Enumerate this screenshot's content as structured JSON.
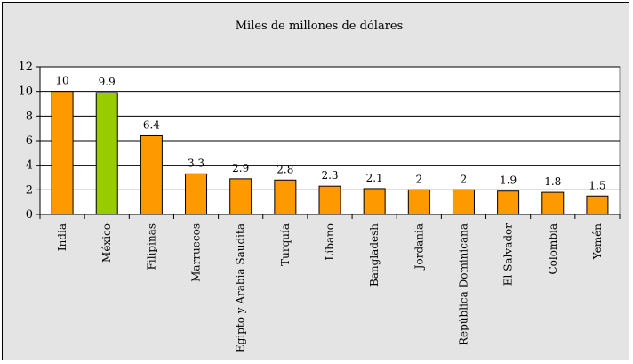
{
  "chart_data": {
    "type": "bar",
    "title": "Miles de millones de dólares",
    "xlabel": "",
    "ylabel": "",
    "ylim": [
      0,
      12
    ],
    "yticks": [
      0,
      2,
      4,
      6,
      8,
      10,
      12
    ],
    "grid": true,
    "legend": "none",
    "categories": [
      "India",
      "México",
      "Filipinas",
      "Marruecos",
      "Egipto y Arabia Saudita",
      "Turquía",
      "Líbano",
      "Bangladesh",
      "Jordania",
      "República Dominicana",
      "El Salvador",
      "Colombia",
      "Yemén"
    ],
    "values": [
      10,
      9.9,
      6.4,
      3.3,
      2.9,
      2.8,
      2.3,
      2.1,
      2,
      2,
      1.9,
      1.8,
      1.5
    ],
    "data_labels": [
      "10",
      "9.9",
      "6.4",
      "3.3",
      "2.9",
      "2.8",
      "2.3",
      "2.1",
      "2",
      "2",
      "1.9",
      "1.8",
      "1.5"
    ],
    "colors": {
      "default_bar": "#ff9900",
      "highlight_bar": "#99cc00",
      "plot_background": "#ffffff",
      "chart_background": "#e4e4e4"
    },
    "highlight_category": "México"
  }
}
